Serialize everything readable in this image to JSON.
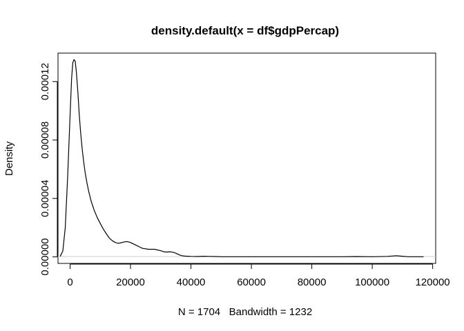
{
  "chart_data": {
    "type": "line",
    "title": "density.default(x = df$gdpPercap)",
    "xlabel": "N = 1704   Bandwidth = 1232",
    "ylabel": "Density",
    "xlim": [
      -4000,
      121000
    ],
    "ylim": [
      -4.5e-06,
      0.0001395
    ],
    "x_ticks": [
      0,
      20000,
      40000,
      60000,
      80000,
      100000,
      120000
    ],
    "x_tick_labels": [
      "0",
      "20000",
      "40000",
      "60000",
      "80000",
      "100000",
      "120000"
    ],
    "y_ticks": [
      0,
      4e-05,
      8e-05,
      0.00012
    ],
    "y_tick_labels": [
      "0.00000",
      "0.00004",
      "0.00008",
      "0.00012"
    ],
    "grid": false,
    "baseline": 0,
    "series": [
      {
        "x": [
          -3300,
          -2400,
          -1600,
          -800,
          0,
          500,
          900,
          1300,
          1700,
          2100,
          2600,
          3000,
          3500,
          4000,
          4500,
          5000,
          5600,
          6200,
          7000,
          8000,
          9000,
          10000,
          11000,
          12000,
          13000,
          14000,
          15000,
          16000,
          17000,
          18000,
          19000,
          20000,
          21000,
          22000,
          23000,
          24000,
          26000,
          28000,
          30000,
          31000,
          32000,
          33000,
          34000,
          35000,
          36000,
          37000,
          38000,
          39000,
          40000,
          42000,
          44000,
          46000,
          48000,
          50000,
          55000,
          60000,
          70000,
          80000,
          90000,
          95000,
          100000,
          105000,
          108000,
          110000,
          112000,
          117000
        ],
        "y": [
          3e-07,
          4e-06,
          2e-05,
          5.5e-05,
          9.7e-05,
          0.000122,
          0.000133,
          0.000135,
          0.000134,
          0.000126,
          0.000112,
          9.85e-05,
          8.5e-05,
          7.4e-05,
          6.5e-05,
          5.75e-05,
          5.05e-05,
          4.45e-05,
          3.8e-05,
          3.18e-05,
          2.68e-05,
          2.28e-05,
          1.9e-05,
          1.58e-05,
          1.28e-05,
          1.1e-05,
          9.8e-06,
          9.3e-06,
          9.7e-06,
          1.03e-05,
          1.04e-05,
          9.8e-06,
          8.8e-06,
          7.8e-06,
          6.8e-06,
          5.8e-06,
          5.2e-06,
          5.2e-06,
          4.2e-06,
          3.5e-06,
          3.3e-06,
          3.5e-06,
          3.2e-06,
          2.5e-06,
          1.5e-06,
          8e-07,
          5e-07,
          4e-07,
          3e-07,
          2e-07,
          4e-07,
          3e-07,
          2e-07,
          1e-07,
          1e-07,
          1e-07,
          1e-07,
          1e-07,
          1e-07,
          2e-07,
          1e-07,
          3e-07,
          8e-07,
          4e-07,
          1e-07,
          1e-07
        ]
      }
    ]
  }
}
